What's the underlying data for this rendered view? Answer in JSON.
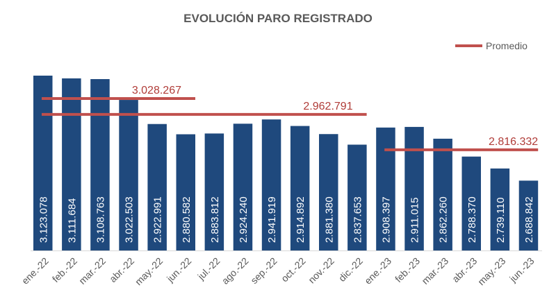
{
  "chart_data": {
    "type": "bar",
    "title": "EVOLUCIÓN PARO REGISTRADO",
    "xlabel": "",
    "ylabel": "",
    "ylim": [
      2400000,
      3150000
    ],
    "grid": false,
    "legend": {
      "position": "top-right",
      "entries": [
        "Promedio"
      ]
    },
    "categories": [
      "ene.-22",
      "feb.-22",
      "mar.-22",
      "abr.-22",
      "may.-22",
      "jun.-22",
      "jul.-22",
      "ago.-22",
      "sep.-22",
      "oct.-22",
      "nov.-22",
      "dic.-22",
      "ene.-23",
      "feb.-23",
      "mar.-23",
      "abr.-23",
      "may.-23",
      "jun.-23"
    ],
    "values": [
      3123078,
      3111684,
      3108763,
      3022503,
      2922991,
      2880582,
      2883812,
      2924240,
      2941919,
      2914892,
      2881380,
      2837653,
      2908397,
      2911015,
      2862260,
      2788370,
      2739110,
      2688842
    ],
    "value_labels": [
      "3.123.078",
      "3.111.684",
      "3.108.763",
      "3.022.503",
      "2.922.991",
      "2.880.582",
      "2.883.812",
      "2.924.240",
      "2.941.919",
      "2.914.892",
      "2.881.380",
      "2.837.653",
      "2.908.397",
      "2.911.015",
      "2.862.260",
      "2.788.370",
      "2.739.110",
      "2.688.842"
    ],
    "averages": [
      {
        "value": 3028267,
        "label": "3.028.267",
        "from": 0,
        "to": 5
      },
      {
        "value": 2962791,
        "label": "2.962.791",
        "from": 0,
        "to": 11
      },
      {
        "value": 2816332,
        "label": "2.816.332",
        "from": 12,
        "to": 17
      }
    ],
    "colors": {
      "bar": "#1f497d",
      "average": "#c0504d"
    }
  }
}
